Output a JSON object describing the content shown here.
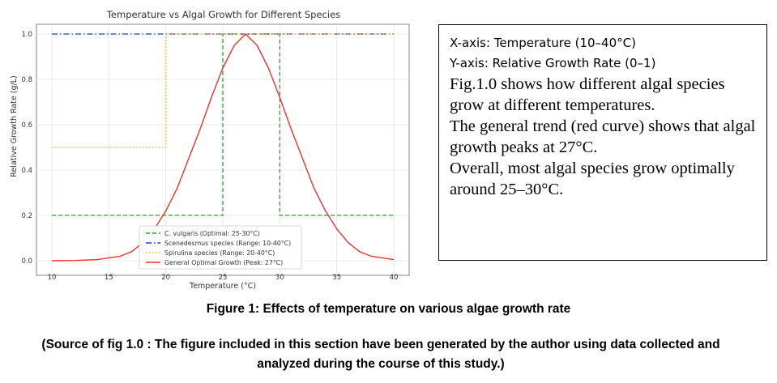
{
  "chart_data": {
    "type": "line",
    "title": "Temperature vs Algal Growth for Different Species",
    "xlabel": "Temperature (°C)",
    "ylabel": "Relative Growth Rate (g/L)",
    "xlim": [
      10,
      40
    ],
    "ylim": [
      0.0,
      1.0
    ],
    "xticks": [
      10,
      15,
      20,
      25,
      30,
      35,
      40
    ],
    "yticks": [
      0.0,
      0.2,
      0.4,
      0.6,
      0.8,
      1.0
    ],
    "grid": true,
    "legend_position": "lower-center",
    "series": [
      {
        "name": "C. vulgaris (Optimal: 25-30°C)",
        "color": "#2ca02c",
        "style": "dashed",
        "x": [
          10,
          25,
          25,
          30,
          30,
          40
        ],
        "y": [
          0.2,
          0.2,
          1.0,
          1.0,
          0.2,
          0.2
        ]
      },
      {
        "name": "Scenedesmus species (Range: 10-40°C)",
        "color": "#1f3fbf",
        "style": "dashdot",
        "x": [
          10,
          40
        ],
        "y": [
          1.0,
          1.0
        ]
      },
      {
        "name": "Spirulina species (Range: 20-40°C)",
        "color": "#f5b041",
        "style": "dotted",
        "x": [
          10,
          20,
          20,
          40
        ],
        "y": [
          0.5,
          0.5,
          1.0,
          1.0
        ]
      },
      {
        "name": "General Optimal Growth (Peak: 27°C)",
        "color": "#e8342e",
        "style": "solid",
        "x": [
          10,
          12,
          14,
          16,
          17,
          18,
          19,
          20,
          21,
          22,
          23,
          24,
          25,
          26,
          27,
          28,
          29,
          30,
          31,
          32,
          33,
          34,
          35,
          36,
          37,
          38,
          40
        ],
        "y": [
          0.0,
          0.001,
          0.005,
          0.02,
          0.04,
          0.08,
          0.14,
          0.22,
          0.32,
          0.45,
          0.58,
          0.72,
          0.85,
          0.95,
          1.0,
          0.95,
          0.85,
          0.72,
          0.58,
          0.45,
          0.32,
          0.22,
          0.14,
          0.08,
          0.04,
          0.02,
          0.005
        ]
      }
    ]
  },
  "info_box": {
    "x_axis_line": "X-axis: Temperature (10–40°C)",
    "y_axis_line": "Y-axis: Relative Growth Rate (0–1)",
    "paragraph_1": "Fig.1.0 shows how different algal species grow at different temperatures.",
    "paragraph_2": "The general trend (red curve) shows that algal growth peaks at 27°C.",
    "paragraph_3": "Overall, most algal species grow optimally around 25–30°C."
  },
  "caption": "Figure 1: Effects of temperature on various algae growth rate",
  "source_note": "(Source of fig 1.0 : The figure included in this section have been generated by the author using data collected and analyzed during the course of this study.)"
}
